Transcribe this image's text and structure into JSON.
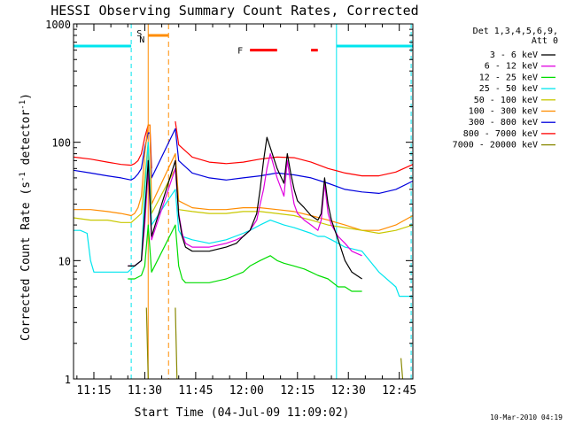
{
  "chart_data": {
    "type": "line",
    "title": "HESSI Observing Summary Count Rates, Corrected",
    "xlabel": "Start Time (04-Jul-09 11:09:02)",
    "ylabel_main": "Corrected Count Rate (s",
    "ylabel_sup1": "-1",
    "ylabel_mid": " detector",
    "ylabel_sup2": "-1",
    "ylabel_end": ")",
    "yscale": "log",
    "ylim": [
      1,
      1000
    ],
    "xlim_minutes": [
      0,
      100
    ],
    "x_ticks": [
      {
        "label": "11:15",
        "min": 6
      },
      {
        "label": "11:30",
        "min": 21
      },
      {
        "label": "11:45",
        "min": 36
      },
      {
        "label": "12:00",
        "min": 51
      },
      {
        "label": "12:15",
        "min": 66
      },
      {
        "label": "12:30",
        "min": 81
      },
      {
        "label": "12:45",
        "min": 96
      }
    ],
    "y_ticks": [
      {
        "label": "1",
        "value": 1
      },
      {
        "label": "10",
        "value": 10
      },
      {
        "label": "100",
        "value": 100
      },
      {
        "label": "1000",
        "value": 1000
      }
    ],
    "legend_header": [
      "Det 1,3,4,5,6,9,",
      "Att 0"
    ],
    "legend": [
      {
        "label": "3 - 6 keV",
        "color": "#000000"
      },
      {
        "label": "6 - 12 keV",
        "color": "#e000e0"
      },
      {
        "label": "12 - 25 keV",
        "color": "#00dd00"
      },
      {
        "label": "25 - 50 keV",
        "color": "#00e5ee"
      },
      {
        "label": "50 - 100 keV",
        "color": "#c8c800"
      },
      {
        "label": "100 - 300 keV",
        "color": "#ff8c00"
      },
      {
        "label": "300 - 800 keV",
        "color": "#0000dd"
      },
      {
        "label": "800 - 7000 keV",
        "color": "#ff0000"
      },
      {
        "label": "7000 - 20000 keV",
        "color": "#888800"
      }
    ],
    "flags": {
      "saa_label": "S",
      "night_label": "N",
      "flare_label": "F"
    },
    "series": [
      {
        "name": "800 - 7000 keV",
        "color": "#ff0000",
        "x": [
          0,
          5,
          10,
          14,
          17,
          18,
          19,
          20,
          21,
          22,
          22.5,
          23,
          24,
          25,
          26,
          27,
          28,
          29,
          30,
          31,
          35,
          40,
          45,
          50,
          55,
          60,
          65,
          70,
          75,
          80,
          85,
          90,
          95,
          100
        ],
        "y": [
          75,
          72,
          68,
          65,
          64,
          66,
          70,
          80,
          110,
          140,
          140,
          60,
          null,
          null,
          null,
          null,
          null,
          null,
          150,
          95,
          75,
          68,
          66,
          68,
          72,
          75,
          74,
          68,
          60,
          55,
          52,
          52,
          56,
          65
        ]
      },
      {
        "name": "300 - 800 keV",
        "color": "#0000dd",
        "x": [
          0,
          5,
          10,
          14,
          17,
          18,
          19,
          20,
          21,
          22,
          22.5,
          23,
          30,
          31,
          35,
          40,
          45,
          50,
          55,
          60,
          65,
          70,
          75,
          80,
          85,
          90,
          95,
          100
        ],
        "y": [
          58,
          55,
          52,
          50,
          48,
          50,
          54,
          60,
          90,
          120,
          120,
          50,
          130,
          70,
          55,
          50,
          48,
          50,
          52,
          55,
          53,
          50,
          45,
          40,
          38,
          37,
          40,
          47
        ]
      },
      {
        "name": "100 - 300 keV",
        "color": "#ff8c00",
        "x": [
          0,
          5,
          10,
          14,
          17,
          18,
          19,
          20,
          21,
          22,
          22.5,
          23,
          30,
          31,
          35,
          40,
          45,
          50,
          55,
          60,
          65,
          70,
          75,
          80,
          85,
          90,
          95,
          100
        ],
        "y": [
          27,
          27,
          26,
          25,
          24,
          25,
          28,
          35,
          80,
          140,
          140,
          30,
          80,
          32,
          28,
          27,
          27,
          28,
          28,
          27,
          26,
          24,
          22,
          20,
          18,
          18,
          20,
          24
        ]
      },
      {
        "name": "50 - 100 keV",
        "color": "#c8c800",
        "x": [
          0,
          5,
          10,
          14,
          17,
          20,
          21,
          22,
          23,
          30,
          31,
          35,
          40,
          45,
          50,
          55,
          60,
          65,
          70,
          75,
          80,
          85,
          90,
          95,
          100
        ],
        "y": [
          23,
          22,
          22,
          21,
          21,
          25,
          50,
          100,
          25,
          60,
          27,
          26,
          25,
          25,
          26,
          26,
          25,
          24,
          22,
          20,
          19,
          18,
          17,
          18,
          20
        ]
      },
      {
        "name": "25 - 50 keV",
        "color": "#00e5ee",
        "x": [
          0,
          2,
          4,
          5,
          6,
          10,
          14,
          16,
          18,
          20,
          21,
          22,
          23,
          30,
          31,
          32,
          35,
          40,
          45,
          50,
          52,
          55,
          58,
          60,
          62,
          65,
          70,
          72,
          74,
          76,
          78,
          80,
          85,
          90,
          95,
          96,
          98,
          100
        ],
        "y": [
          18,
          18,
          17,
          10,
          8,
          8,
          8,
          8,
          9,
          10,
          40,
          100,
          20,
          40,
          18,
          16,
          15,
          14,
          15,
          17,
          18,
          20,
          22,
          21,
          20,
          19,
          17,
          16,
          16,
          15,
          14,
          13,
          12,
          8,
          6,
          5,
          5,
          5
        ]
      },
      {
        "name": "6 - 12 keV",
        "color": "#e000e0",
        "x": [
          16,
          18,
          20,
          21,
          22,
          23,
          30,
          31,
          32,
          33,
          35,
          40,
          45,
          48,
          50,
          52,
          54,
          55,
          56,
          57,
          58,
          60,
          62,
          63,
          64,
          65,
          66,
          68,
          70,
          72,
          73,
          74,
          75,
          76,
          78,
          80,
          82,
          85
        ],
        "y": [
          9,
          9,
          10,
          20,
          60,
          15,
          60,
          25,
          17,
          14,
          13,
          13,
          14,
          15,
          16,
          18,
          22,
          30,
          40,
          60,
          80,
          50,
          35,
          70,
          45,
          30,
          25,
          22,
          20,
          18,
          22,
          45,
          25,
          20,
          16,
          14,
          12,
          11
        ]
      },
      {
        "name": "3 - 6 keV",
        "color": "#000000",
        "x": [
          16,
          18,
          20,
          21,
          22,
          23,
          30,
          31,
          32,
          33,
          35,
          40,
          45,
          48,
          50,
          52,
          54,
          55,
          56,
          57,
          58,
          60,
          62,
          63,
          64,
          65,
          66,
          68,
          70,
          72,
          73,
          74,
          75,
          76,
          78,
          80,
          82,
          85
        ],
        "y": [
          9,
          9,
          10,
          25,
          70,
          16,
          70,
          24,
          16,
          13,
          12,
          12,
          13,
          14,
          16,
          18,
          25,
          40,
          70,
          110,
          90,
          60,
          45,
          80,
          55,
          40,
          32,
          28,
          24,
          22,
          25,
          50,
          30,
          22,
          15,
          10,
          8,
          7
        ]
      },
      {
        "name": "12 - 25 keV",
        "color": "#00dd00",
        "x": [
          16,
          18,
          20,
          21,
          22,
          23,
          30,
          31,
          32,
          33,
          35,
          40,
          45,
          50,
          52,
          55,
          58,
          60,
          62,
          65,
          68,
          70,
          72,
          75,
          78,
          80,
          82,
          85
        ],
        "y": [
          7,
          7,
          7.5,
          9,
          20,
          8,
          20,
          9,
          7,
          6.5,
          6.5,
          6.5,
          7,
          8,
          9,
          10,
          11,
          10,
          9.5,
          9,
          8.5,
          8,
          7.5,
          7,
          6,
          6,
          5.5,
          5.5
        ]
      },
      {
        "name": "7000 - 20000 keV",
        "color": "#888800",
        "x": [
          0,
          5,
          10,
          15,
          18,
          20,
          21,
          21.5,
          22,
          23,
          29,
          30,
          30.5,
          31,
          40,
          60,
          80,
          96,
          96.5,
          97,
          100
        ],
        "y": [
          null,
          null,
          null,
          null,
          null,
          null,
          null,
          4,
          1,
          null,
          null,
          4,
          1,
          null,
          null,
          null,
          null,
          null,
          1.5,
          1,
          null
        ]
      }
    ],
    "saa_bar": {
      "x": [
        22,
        28
      ],
      "y": 800
    },
    "saa_left_line": 22,
    "saa_right_dash": 28,
    "night_cyan_left": [
      0,
      17
    ],
    "night_cyan_right": [
      77.5,
      100
    ],
    "night_level": 650,
    "night_dash_left": 17,
    "night_dash_right": 99.5,
    "flare_bars": [
      [
        52,
        60
      ],
      [
        70,
        72
      ]
    ],
    "flare_level": 600
  },
  "footer_date": "10-Mar-2010 04:19"
}
